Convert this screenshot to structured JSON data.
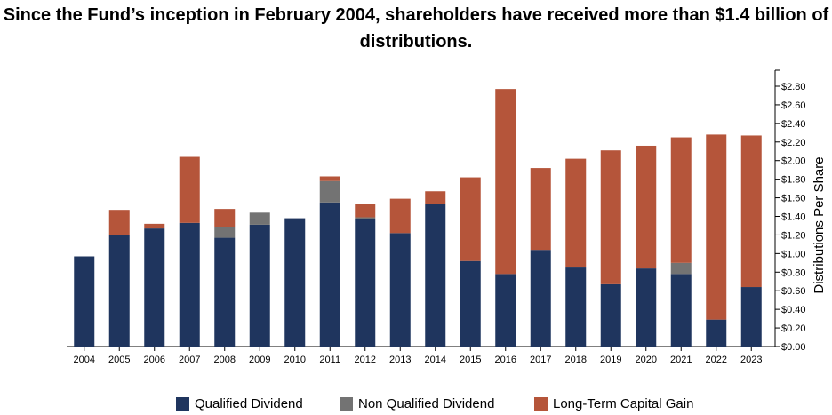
{
  "title_line1": "Since the Fund’s inception in February 2004, shareholders have received more than $1.4 billion of",
  "title_line2": "distributions.",
  "chart_data": {
    "type": "bar",
    "stacked": true,
    "categories": [
      "2004",
      "2005",
      "2006",
      "2007",
      "2008",
      "2009",
      "2010",
      "2011",
      "2012",
      "2013",
      "2014",
      "2015",
      "2016",
      "2017",
      "2018",
      "2019",
      "2020",
      "2021",
      "2022",
      "2023"
    ],
    "series": [
      {
        "name": "Qualified Dividend",
        "color": "#1f355e",
        "values": [
          0.97,
          1.2,
          1.27,
          1.33,
          1.17,
          1.31,
          1.38,
          1.55,
          1.37,
          1.22,
          1.53,
          0.92,
          0.78,
          1.04,
          0.85,
          0.67,
          0.84,
          0.78,
          0.29,
          0.64
        ]
      },
      {
        "name": "Non Qualified Dividend",
        "color": "#737373",
        "values": [
          0,
          0,
          0,
          0,
          0.12,
          0.13,
          0,
          0.23,
          0.02,
          0,
          0,
          0,
          0,
          0,
          0,
          0,
          0,
          0.12,
          0,
          0
        ]
      },
      {
        "name": "Long-Term Capital Gain",
        "color": "#b5553a",
        "values": [
          0,
          0.27,
          0.05,
          0.71,
          0.19,
          0,
          0,
          0.05,
          0.14,
          0.37,
          0.14,
          0.9,
          1.99,
          0.88,
          1.17,
          1.44,
          1.32,
          1.35,
          1.99,
          1.63
        ]
      }
    ],
    "ylabel": "Distributions Per Share",
    "ylim": [
      0,
      2.8
    ],
    "yticks": [
      "$0.00",
      "$0.20",
      "$0.40",
      "$0.60",
      "$0.80",
      "$1.00",
      "$1.20",
      "$1.40",
      "$1.60",
      "$1.80",
      "$2.00",
      "$2.20",
      "$2.40",
      "$2.60",
      "$2.80"
    ],
    "legend_position": "bottom"
  }
}
